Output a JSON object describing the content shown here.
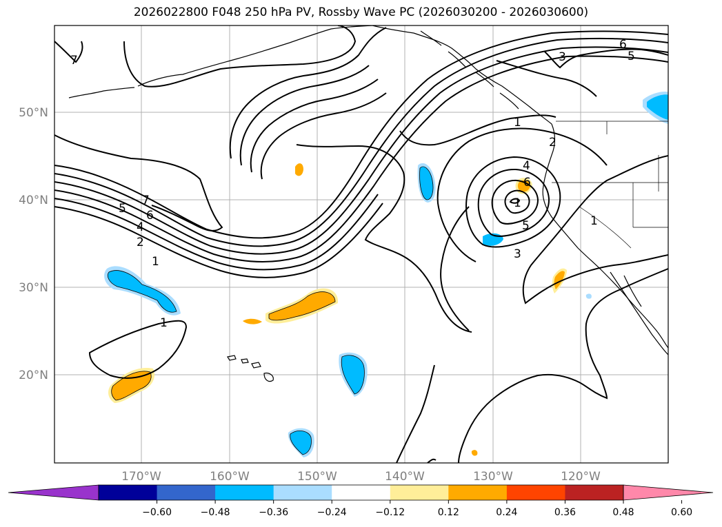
{
  "title": "2026022800 F048 250 hPa PV, Rossby Wave PC (2026030200 - 2026030600)",
  "map": {
    "lon_labels": [
      "170°W",
      "160°W",
      "150°W",
      "140°W",
      "130°W",
      "120°W"
    ],
    "lat_labels": [
      "50°N",
      "40°N",
      "30°N",
      "20°N"
    ],
    "contour_labels": [
      "7",
      "7",
      "6",
      "5",
      "4",
      "2",
      "1",
      "1",
      "1",
      "2",
      "4",
      "6",
      "1",
      "5",
      "3",
      "3",
      "6",
      "5",
      "1"
    ]
  },
  "colorbar": {
    "colors": [
      "#9933cc",
      "#000099",
      "#3366cc",
      "#00bbff",
      "#aaddff",
      "#ffffff",
      "#ffee99",
      "#ffaa00",
      "#ff4400",
      "#bb2222",
      "#ff88aa"
    ],
    "tick_labels": [
      "−0.60",
      "−0.48",
      "−0.36",
      "−0.24",
      "−0.12",
      "0.12",
      "0.24",
      "0.36",
      "0.48",
      "0.60"
    ]
  }
}
